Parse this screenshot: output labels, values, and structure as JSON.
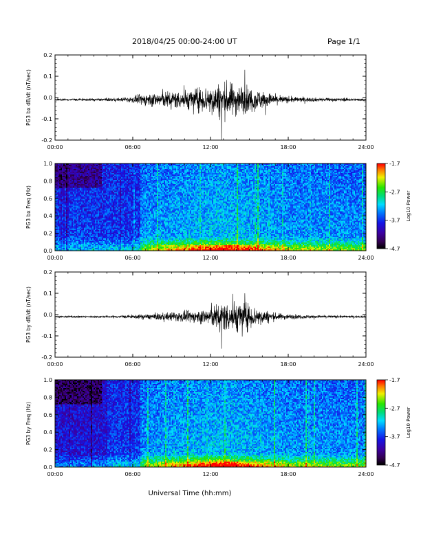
{
  "header": {
    "title": "2018/04/25  00:00-24:00 UT",
    "page_label": "Page 1/1"
  },
  "xaxis_label": "Universal Time (hh:mm)",
  "chart_data": [
    {
      "type": "line",
      "ylabel": "PG3 bx dB/dt (nT/sec)",
      "xlim": [
        "00:00",
        "24:00"
      ],
      "xticks": [
        "00:00",
        "06:00",
        "12:00",
        "18:00",
        "24:00"
      ],
      "ylim": [
        -0.2,
        0.2
      ],
      "yticks": [
        "-0.2",
        "-0.1",
        "0.0",
        "0.1",
        "0.2"
      ],
      "envelope": {
        "hours": [
          0,
          3,
          5,
          6,
          7,
          9,
          11,
          12,
          13,
          14,
          15,
          16,
          17,
          18,
          20,
          24
        ],
        "amplitude": [
          0.004,
          0.005,
          0.007,
          0.012,
          0.025,
          0.035,
          0.045,
          0.06,
          0.07,
          0.065,
          0.05,
          0.035,
          0.02,
          0.012,
          0.008,
          0.005
        ]
      },
      "peaks": {
        "max": 0.13,
        "min": -0.2
      }
    },
    {
      "type": "heatmap",
      "ylabel": "PG3 bx Freq (Hz)",
      "xlim": [
        "00:00",
        "24:00"
      ],
      "xticks": [
        "00:00",
        "06:00",
        "12:00",
        "18:00",
        "24:00"
      ],
      "ylim": [
        0.0,
        1.0
      ],
      "yticks": [
        "0.0",
        "0.2",
        "0.4",
        "0.6",
        "0.8",
        "1.0"
      ],
      "colorbar": {
        "label": "Log10 Power",
        "range": [
          -4.7,
          -1.7
        ],
        "ticks": [
          "-1.7",
          "-2.7",
          "-3.7",
          "-4.7"
        ]
      }
    },
    {
      "type": "line",
      "ylabel": "PG3 by dB/dt (nT/sec)",
      "xlim": [
        "00:00",
        "24:00"
      ],
      "xticks": [
        "00:00",
        "06:00",
        "12:00",
        "18:00",
        "24:00"
      ],
      "ylim": [
        -0.2,
        0.2
      ],
      "yticks": [
        "-0.2",
        "-0.1",
        "0.0",
        "0.1",
        "0.2"
      ],
      "envelope": {
        "hours": [
          0,
          3,
          5,
          6,
          7,
          9,
          11,
          12,
          13,
          14,
          15,
          16,
          17,
          18,
          20,
          24
        ],
        "amplitude": [
          0.003,
          0.004,
          0.005,
          0.007,
          0.01,
          0.018,
          0.025,
          0.04,
          0.06,
          0.065,
          0.05,
          0.03,
          0.015,
          0.01,
          0.006,
          0.004
        ]
      },
      "peaks": {
        "max": 0.1,
        "min": -0.16
      }
    },
    {
      "type": "heatmap",
      "ylabel": "PG3 by Freq (Hz)",
      "xlim": [
        "00:00",
        "24:00"
      ],
      "xticks": [
        "00:00",
        "06:00",
        "12:00",
        "18:00",
        "24:00"
      ],
      "ylim": [
        0.0,
        1.0
      ],
      "yticks": [
        "0.0",
        "0.2",
        "0.4",
        "0.6",
        "0.8",
        "1.0"
      ],
      "colorbar": {
        "label": "Log10 Power",
        "range": [
          -4.7,
          -1.7
        ],
        "ticks": [
          "-1.7",
          "-2.7",
          "-3.7",
          "-4.7"
        ]
      }
    }
  ]
}
